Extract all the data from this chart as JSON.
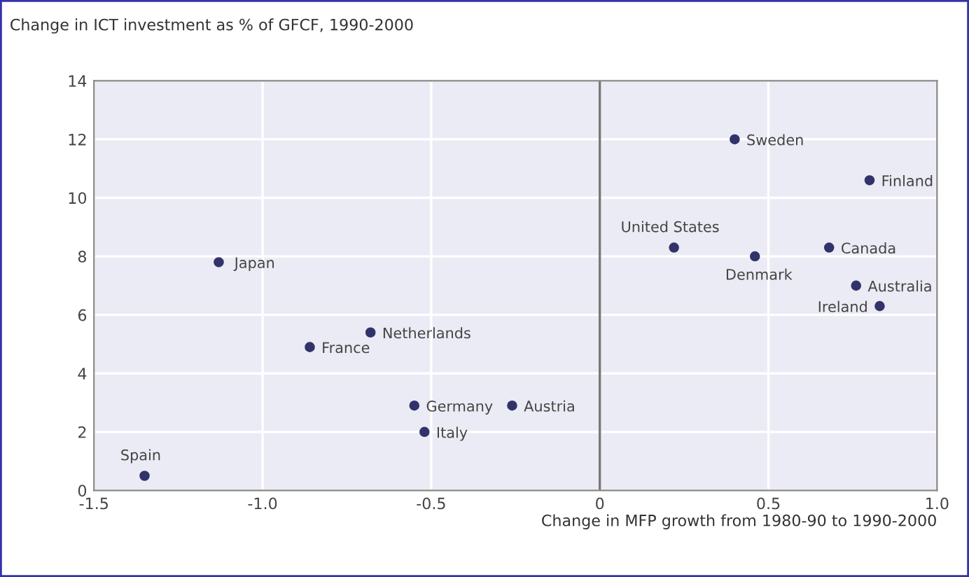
{
  "chart_data": {
    "type": "scatter",
    "title": "Change in ICT investment as % of GFCF, 1990-2000",
    "xlabel": "Change in MFP growth from 1980-90 to 1990-2000",
    "x": [
      -1.35,
      -1.13,
      -0.68,
      -0.86,
      -0.55,
      -0.26,
      -0.52,
      0.4,
      0.8,
      0.22,
      0.46,
      0.68,
      0.76,
      0.83
    ],
    "series": [
      {
        "color": "#33336b",
        "values": [
          0.5,
          7.8,
          5.4,
          4.9,
          2.9,
          2.9,
          2.0,
          12.0,
          10.6,
          8.3,
          8.0,
          8.3,
          7.0,
          6.3
        ]
      }
    ],
    "annotations": [
      {
        "text": "Spain",
        "x": -1.35,
        "y": 0.5
      },
      {
        "text": "Japan",
        "x": -1.13,
        "y": 7.8
      },
      {
        "text": "Netherlands",
        "x": -0.68,
        "y": 5.4
      },
      {
        "text": "France",
        "x": -0.86,
        "y": 4.9
      },
      {
        "text": "Germany",
        "x": -0.55,
        "y": 2.9
      },
      {
        "text": "Austria",
        "x": -0.26,
        "y": 2.9
      },
      {
        "text": "Italy",
        "x": -0.52,
        "y": 2.0
      },
      {
        "text": "Sweden",
        "x": 0.4,
        "y": 12.0
      },
      {
        "text": "Finland",
        "x": 0.8,
        "y": 10.6
      },
      {
        "text": "United States",
        "x": 0.22,
        "y": 8.3
      },
      {
        "text": "Denmark",
        "x": 0.46,
        "y": 8.0
      },
      {
        "text": "Canada",
        "x": 0.68,
        "y": 8.3
      },
      {
        "text": "Australia",
        "x": 0.76,
        "y": 7.0
      },
      {
        "text": "Ireland",
        "x": 0.83,
        "y": 6.3
      }
    ],
    "xlim": [
      -1.5,
      1.0
    ],
    "ylim": [
      0,
      14
    ],
    "xticks": [
      {
        "value": -1.5,
        "label": "-1.5"
      },
      {
        "value": -1.0,
        "label": "-1.0"
      },
      {
        "value": -0.5,
        "label": "-0.5"
      },
      0,
      0.5,
      {
        "value": 1.0,
        "label": "1.0"
      }
    ],
    "yticks": [
      0,
      2,
      4,
      6,
      8,
      10,
      12,
      14
    ],
    "ref_lines": [
      {
        "axis": "x",
        "value": 0,
        "color": "#777777"
      }
    ],
    "grid": true,
    "marker": "circle"
  }
}
